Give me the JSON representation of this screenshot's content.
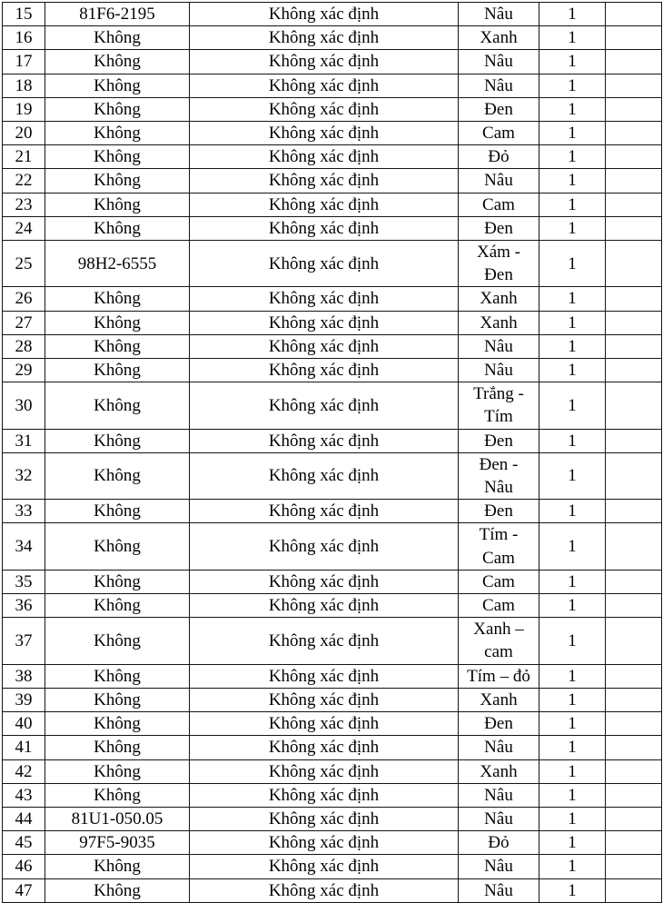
{
  "table": {
    "columns": {
      "stt": "row-number",
      "plate": "plate-number",
      "status": "identification-status",
      "color": "color",
      "count": "quantity",
      "note": "note"
    },
    "rows": [
      {
        "stt": "15",
        "plate": "81F6-2195",
        "status": "Không xác định",
        "color": "Nâu",
        "count": "1",
        "note": ""
      },
      {
        "stt": "16",
        "plate": "Không",
        "status": "Không xác định",
        "color": "Xanh",
        "count": "1",
        "note": ""
      },
      {
        "stt": "17",
        "plate": "Không",
        "status": "Không xác định",
        "color": "Nâu",
        "count": "1",
        "note": ""
      },
      {
        "stt": "18",
        "plate": "Không",
        "status": "Không xác định",
        "color": "Nâu",
        "count": "1",
        "note": ""
      },
      {
        "stt": "19",
        "plate": "Không",
        "status": "Không xác định",
        "color": "Đen",
        "count": "1",
        "note": ""
      },
      {
        "stt": "20",
        "plate": "Không",
        "status": "Không xác định",
        "color": "Cam",
        "count": "1",
        "note": ""
      },
      {
        "stt": "21",
        "plate": "Không",
        "status": "Không xác định",
        "color": "Đỏ",
        "count": "1",
        "note": ""
      },
      {
        "stt": "22",
        "plate": "Không",
        "status": "Không xác định",
        "color": "Nâu",
        "count": "1",
        "note": ""
      },
      {
        "stt": "23",
        "plate": "Không",
        "status": "Không xác định",
        "color": "Cam",
        "count": "1",
        "note": ""
      },
      {
        "stt": "24",
        "plate": "Không",
        "status": "Không xác định",
        "color": "Đen",
        "count": "1",
        "note": ""
      },
      {
        "stt": "25",
        "plate": "98H2-6555",
        "status": "Không xác định",
        "color": "Xám -\nĐen",
        "count": "1",
        "note": ""
      },
      {
        "stt": "26",
        "plate": "Không",
        "status": "Không xác định",
        "color": "Xanh",
        "count": "1",
        "note": ""
      },
      {
        "stt": "27",
        "plate": "Không",
        "status": "Không xác định",
        "color": "Xanh",
        "count": "1",
        "note": ""
      },
      {
        "stt": "28",
        "plate": "Không",
        "status": "Không xác định",
        "color": "Nâu",
        "count": "1",
        "note": ""
      },
      {
        "stt": "29",
        "plate": "Không",
        "status": "Không xác định",
        "color": "Nâu",
        "count": "1",
        "note": ""
      },
      {
        "stt": "30",
        "plate": "Không",
        "status": "Không xác định",
        "color": "Trắng -\nTím",
        "count": "1",
        "note": ""
      },
      {
        "stt": "31",
        "plate": "Không",
        "status": "Không xác định",
        "color": "Đen",
        "count": "1",
        "note": ""
      },
      {
        "stt": "32",
        "plate": "Không",
        "status": "Không xác định",
        "color": "Đen -\nNâu",
        "count": "1",
        "note": ""
      },
      {
        "stt": "33",
        "plate": "Không",
        "status": "Không xác định",
        "color": "Đen",
        "count": "1",
        "note": ""
      },
      {
        "stt": "34",
        "plate": "Không",
        "status": "Không xác định",
        "color": "Tím -\nCam",
        "count": "1",
        "note": ""
      },
      {
        "stt": "35",
        "plate": "Không",
        "status": "Không xác định",
        "color": "Cam",
        "count": "1",
        "note": ""
      },
      {
        "stt": "36",
        "plate": "Không",
        "status": "Không xác định",
        "color": "Cam",
        "count": "1",
        "note": ""
      },
      {
        "stt": "37",
        "plate": "Không",
        "status": "Không xác định",
        "color": "Xanh –\ncam",
        "count": "1",
        "note": ""
      },
      {
        "stt": "38",
        "plate": "Không",
        "status": "Không xác định",
        "color": "Tím – đỏ",
        "count": "1",
        "note": ""
      },
      {
        "stt": "39",
        "plate": "Không",
        "status": "Không xác định",
        "color": "Xanh",
        "count": "1",
        "note": ""
      },
      {
        "stt": "40",
        "plate": "Không",
        "status": "Không xác định",
        "color": "Đen",
        "count": "1",
        "note": ""
      },
      {
        "stt": "41",
        "plate": "Không",
        "status": "Không xác định",
        "color": "Nâu",
        "count": "1",
        "note": ""
      },
      {
        "stt": "42",
        "plate": "Không",
        "status": "Không xác định",
        "color": "Xanh",
        "count": "1",
        "note": ""
      },
      {
        "stt": "43",
        "plate": "Không",
        "status": "Không xác định",
        "color": "Nâu",
        "count": "1",
        "note": ""
      },
      {
        "stt": "44",
        "plate": "81U1-050.05",
        "status": "Không xác định",
        "color": "Nâu",
        "count": "1",
        "note": ""
      },
      {
        "stt": "45",
        "plate": "97F5-9035",
        "status": "Không xác định",
        "color": "Đỏ",
        "count": "1",
        "note": ""
      },
      {
        "stt": "46",
        "plate": "Không",
        "status": "Không xác định",
        "color": "Nâu",
        "count": "1",
        "note": ""
      },
      {
        "stt": "47",
        "plate": "Không",
        "status": "Không xác định",
        "color": "Nâu",
        "count": "1",
        "note": ""
      }
    ]
  }
}
